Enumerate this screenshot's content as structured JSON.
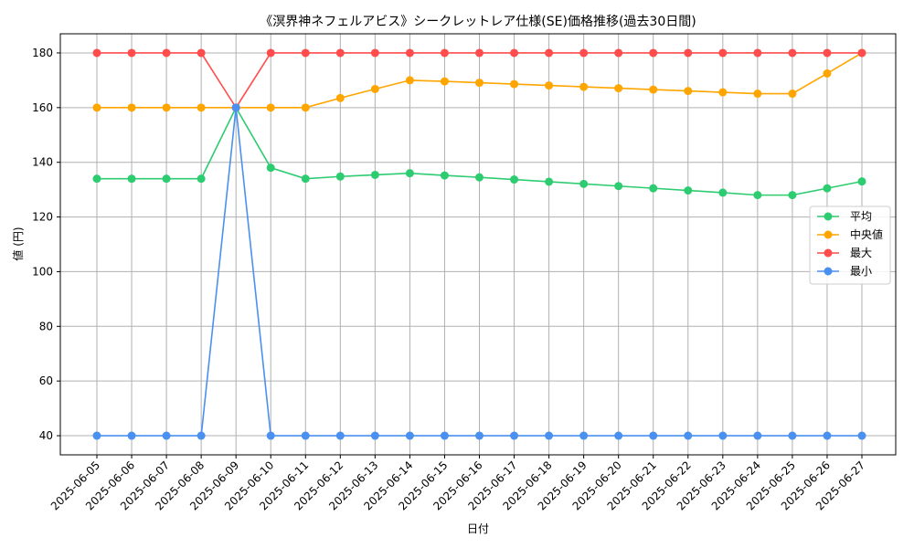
{
  "chart_data": {
    "type": "line",
    "title": "《溟界神ネフェルアビス》シークレットレア仕様(SE)価格推移(過去30日間)",
    "xlabel": "日付",
    "ylabel": "値 (円)",
    "categories": [
      "2025-06-05",
      "2025-06-06",
      "2025-06-07",
      "2025-06-08",
      "2025-06-09",
      "2025-06-10",
      "2025-06-11",
      "2025-06-12",
      "2025-06-13",
      "2025-06-14",
      "2025-06-15",
      "2025-06-16",
      "2025-06-17",
      "2025-06-18",
      "2025-06-19",
      "2025-06-20",
      "2025-06-21",
      "2025-06-22",
      "2025-06-23",
      "2025-06-24",
      "2025-06-25",
      "2025-06-26",
      "2025-06-27"
    ],
    "ylim": [
      33,
      187
    ],
    "yticks": [
      40,
      60,
      80,
      100,
      120,
      140,
      160,
      180
    ],
    "grid": true,
    "legend_position": "center-right",
    "series": [
      {
        "name": "平均",
        "color": "#2ecc71",
        "values": [
          134,
          134,
          134,
          134,
          160,
          138,
          134,
          134.8,
          135.4,
          136,
          135.2,
          134.5,
          133.7,
          132.9,
          132.1,
          131.3,
          130.5,
          129.7,
          128.9,
          128,
          128,
          130.5,
          133
        ]
      },
      {
        "name": "中央値",
        "color": "#ffa500",
        "values": [
          160,
          160,
          160,
          160,
          160,
          160,
          160,
          163.5,
          166.8,
          170,
          169.6,
          169.1,
          168.6,
          168.1,
          167.6,
          167.1,
          166.6,
          166.1,
          165.6,
          165.1,
          165.1,
          172.5,
          180
        ]
      },
      {
        "name": "最大",
        "color": "#ff4c4c",
        "values": [
          180,
          180,
          180,
          180,
          160,
          180,
          180,
          180,
          180,
          180,
          180,
          180,
          180,
          180,
          180,
          180,
          180,
          180,
          180,
          180,
          180,
          180,
          180
        ]
      },
      {
        "name": "最小",
        "color": "#4a90f0",
        "values": [
          40,
          40,
          40,
          40,
          160,
          40,
          40,
          40,
          40,
          40,
          40,
          40,
          40,
          40,
          40,
          40,
          40,
          40,
          40,
          40,
          40,
          40,
          40
        ]
      }
    ]
  }
}
